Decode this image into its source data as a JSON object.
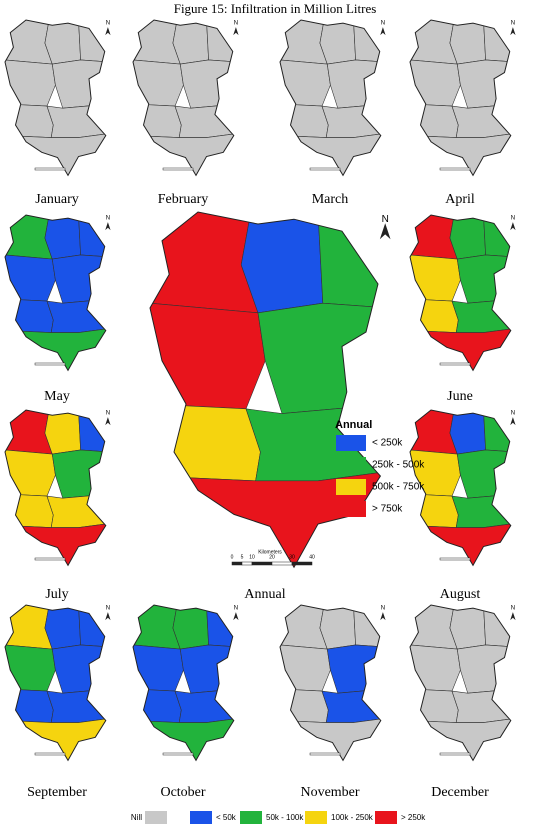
{
  "title": "Figure 15: Infiltration in Million Litres",
  "north": "N",
  "panels": [
    {
      "label": "January",
      "zones": [
        "#c8c8c8",
        "#c8c8c8",
        "#c8c8c8",
        "#c8c8c8",
        "#c8c8c8",
        "#c8c8c8",
        "#c8c8c8",
        "#c8c8c8"
      ]
    },
    {
      "label": "February",
      "zones": [
        "#c8c8c8",
        "#c8c8c8",
        "#c8c8c8",
        "#c8c8c8",
        "#c8c8c8",
        "#c8c8c8",
        "#c8c8c8",
        "#c8c8c8"
      ]
    },
    {
      "label": "March",
      "zones": [
        "#c8c8c8",
        "#c8c8c8",
        "#c8c8c8",
        "#c8c8c8",
        "#c8c8c8",
        "#c8c8c8",
        "#c8c8c8",
        "#c8c8c8"
      ]
    },
    {
      "label": "April",
      "zones": [
        "#c8c8c8",
        "#c8c8c8",
        "#c8c8c8",
        "#c8c8c8",
        "#c8c8c8",
        "#c8c8c8",
        "#c8c8c8",
        "#c8c8c8"
      ]
    },
    {
      "label": "May",
      "zones": [
        "#22b33c",
        "#1a53e8",
        "#1a53e8",
        "#1a53e8",
        "#1a53e8",
        "#1a53e8",
        "#1a53e8",
        "#22b33c"
      ]
    },
    {
      "label": "June",
      "zones": [
        "#e8141c",
        "#22b33c",
        "#22b33c",
        "#f5d40f",
        "#22b33c",
        "#f5d40f",
        "#22b33c",
        "#e8141c"
      ]
    },
    {
      "label": "July",
      "zones": [
        "#e8141c",
        "#f5d40f",
        "#1a53e8",
        "#f5d40f",
        "#22b33c",
        "#f5d40f",
        "#f5d40f",
        "#e8141c"
      ]
    },
    {
      "label": "Annual",
      "zones": [
        "#e8141c",
        "#1a53e8",
        "#22b33c",
        "#e8141c",
        "#22b33c",
        "#f5d40f",
        "#22b33c",
        "#e8141c"
      ]
    },
    {
      "label": "August",
      "zones": [
        "#e8141c",
        "#1a53e8",
        "#22b33c",
        "#f5d40f",
        "#22b33c",
        "#f5d40f",
        "#22b33c",
        "#e8141c"
      ]
    },
    {
      "label": "September",
      "zones": [
        "#f5d40f",
        "#1a53e8",
        "#1a53e8",
        "#22b33c",
        "#1a53e8",
        "#1a53e8",
        "#1a53e8",
        "#f5d40f"
      ]
    },
    {
      "label": "October",
      "zones": [
        "#22b33c",
        "#22b33c",
        "#1a53e8",
        "#1a53e8",
        "#1a53e8",
        "#1a53e8",
        "#1a53e8",
        "#22b33c"
      ]
    },
    {
      "label": "November",
      "zones": [
        "#c8c8c8",
        "#c8c8c8",
        "#c8c8c8",
        "#c8c8c8",
        "#1a53e8",
        "#c8c8c8",
        "#1a53e8",
        "#c8c8c8"
      ]
    },
    {
      "label": "December",
      "zones": [
        "#c8c8c8",
        "#c8c8c8",
        "#c8c8c8",
        "#c8c8c8",
        "#c8c8c8",
        "#c8c8c8",
        "#c8c8c8",
        "#c8c8c8"
      ]
    }
  ],
  "annual_legend": {
    "title": "Annual",
    "items": [
      {
        "label": "< 250k",
        "color": "#1a53e8"
      },
      {
        "label": "250k - 500k",
        "color": "#22b33c"
      },
      {
        "label": "500k - 750k",
        "color": "#f5d40f"
      },
      {
        "label": "> 750k",
        "color": "#e8141c"
      }
    ]
  },
  "scale_bar": {
    "unit": "Kilometers",
    "ticks": [
      0,
      5,
      10,
      20,
      30,
      40
    ]
  },
  "legend": [
    {
      "label": "Nill",
      "color": "#c8c8c8"
    },
    {
      "label": "< 50k",
      "color": "#1a53e8"
    },
    {
      "label": "50k - 100k",
      "color": "#22b33c"
    },
    {
      "label": "100k - 250k",
      "color": "#f5d40f"
    },
    {
      "label": "> 250k",
      "color": "#e8141c"
    }
  ]
}
